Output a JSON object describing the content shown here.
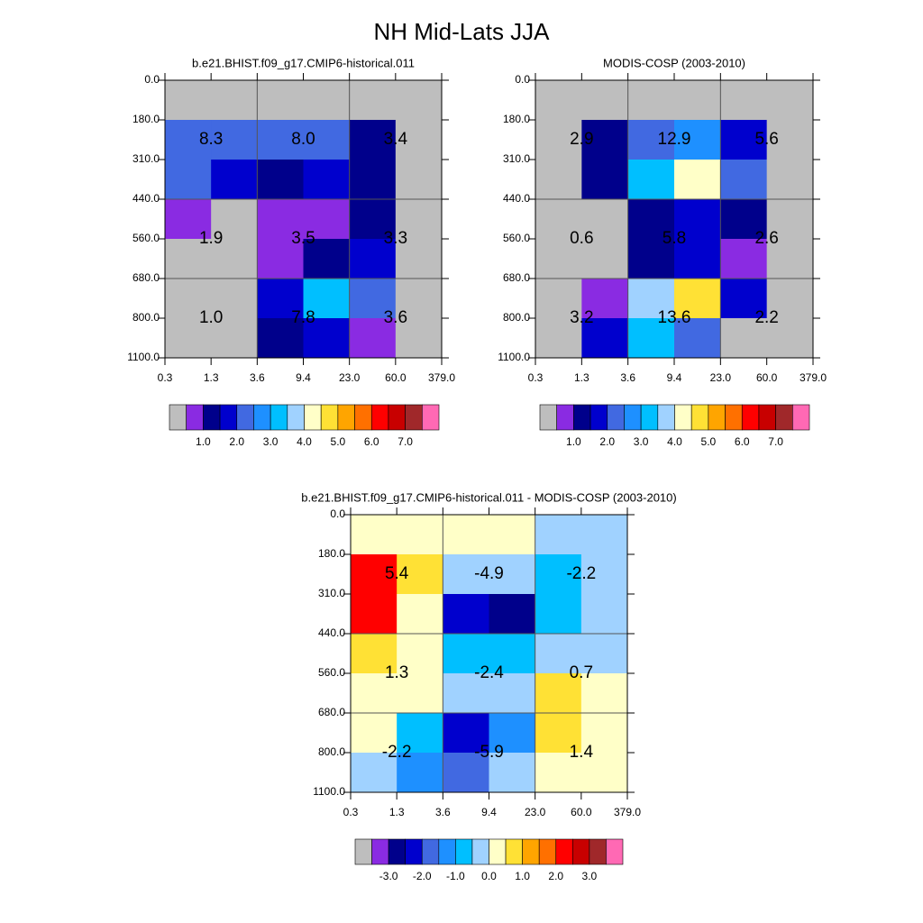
{
  "title": "NH Mid-Lats JJA",
  "chart_data": [
    {
      "type": "heatmap",
      "title": "b.e21.BHIST.f09_g17.CMIP6-historical.011",
      "xticks": [
        {
          "value": 0.3,
          "label": "0.3"
        },
        {
          "value": 1.3,
          "label": "1.3"
        },
        {
          "value": 3.6,
          "label": "3.6"
        },
        {
          "value": 9.4,
          "label": "9.4"
        },
        {
          "value": 23,
          "label": "23.0"
        },
        {
          "value": 60,
          "label": "60.0"
        },
        {
          "value": 379,
          "label": "379.0"
        }
      ],
      "yticks": [
        {
          "value": 0,
          "label": "0.0"
        },
        {
          "value": 180,
          "label": "180.0"
        },
        {
          "value": 310,
          "label": "310.0"
        },
        {
          "value": 440,
          "label": "440.0"
        },
        {
          "value": 560,
          "label": "560.0"
        },
        {
          "value": 680,
          "label": "680.0"
        },
        {
          "value": 800,
          "label": "800.0"
        },
        {
          "value": 1100,
          "label": "1100.0"
        }
      ],
      "cells": [
        [
          0.25,
          0.25,
          0.25,
          0.25,
          0.25,
          0.25
        ],
        [
          2.25,
          2.25,
          2.25,
          2.25,
          1.25,
          0.25
        ],
        [
          2.25,
          1.75,
          1.25,
          1.75,
          1.25,
          0.25
        ],
        [
          0.75,
          0.25,
          0.75,
          0.75,
          1.25,
          0.25
        ],
        [
          0.25,
          0.25,
          0.75,
          1.25,
          1.75,
          0.25
        ],
        [
          0.25,
          0.25,
          1.75,
          3.25,
          2.25,
          0.25
        ],
        [
          0.25,
          0.25,
          1.25,
          1.75,
          0.75,
          0.25
        ]
      ],
      "block_values": [
        [
          8.3,
          8,
          3.4
        ],
        [
          1.9,
          3.5,
          3.3
        ],
        [
          1,
          7.8,
          3.6
        ]
      ],
      "block_labels": [
        [
          "8.3",
          "8.0",
          "3.4"
        ],
        [
          "1.9",
          "3.5",
          "3.3"
        ],
        [
          "1.0",
          "7.8",
          "3.6"
        ]
      ],
      "grid": true,
      "colorbar": {
        "lim": [
          0,
          8
        ],
        "colors": [
          "#bebebe",
          "#8a2be2",
          "#00008b",
          "#0000cd",
          "#4169e1",
          "#1e90ff",
          "#00bfff",
          "#a0d2ff",
          "#ffffc8",
          "#ffe135",
          "#ffa500",
          "#ff7000",
          "#ff0000",
          "#c80000",
          "#a0282a",
          "#ff69b4"
        ],
        "ticks": [
          {
            "value": 1,
            "label": "1.0"
          },
          {
            "value": 2,
            "label": "2.0"
          },
          {
            "value": 3,
            "label": "3.0"
          },
          {
            "value": 4,
            "label": "4.0"
          },
          {
            "value": 5,
            "label": "5.0"
          },
          {
            "value": 6,
            "label": "6.0"
          },
          {
            "value": 7,
            "label": "7.0"
          }
        ]
      }
    },
    {
      "type": "heatmap",
      "title": "MODIS-COSP (2003-2010)",
      "xticks": [
        {
          "value": 0.3,
          "label": "0.3"
        },
        {
          "value": 1.3,
          "label": "1.3"
        },
        {
          "value": 3.6,
          "label": "3.6"
        },
        {
          "value": 9.4,
          "label": "9.4"
        },
        {
          "value": 23,
          "label": "23.0"
        },
        {
          "value": 60,
          "label": "60.0"
        },
        {
          "value": 379,
          "label": "379.0"
        }
      ],
      "yticks": [
        {
          "value": 0,
          "label": "0.0"
        },
        {
          "value": 180,
          "label": "180.0"
        },
        {
          "value": 310,
          "label": "310.0"
        },
        {
          "value": 440,
          "label": "440.0"
        },
        {
          "value": 560,
          "label": "560.0"
        },
        {
          "value": 680,
          "label": "680.0"
        },
        {
          "value": 800,
          "label": "800.0"
        },
        {
          "value": 1100,
          "label": "1100.0"
        }
      ],
      "cells": [
        [
          0.25,
          0.25,
          0.25,
          0.25,
          0.25,
          0.25
        ],
        [
          0.25,
          1.25,
          2.25,
          2.75,
          1.75,
          0.25
        ],
        [
          0.25,
          1.25,
          3.25,
          4.25,
          2.25,
          0.25
        ],
        [
          0.25,
          0.25,
          1.25,
          1.75,
          1.25,
          0.25
        ],
        [
          0.25,
          0.25,
          1.25,
          1.75,
          0.75,
          0.25
        ],
        [
          0.25,
          0.75,
          3.75,
          4.75,
          1.75,
          0.25
        ],
        [
          0.25,
          1.75,
          3.25,
          2.25,
          0.25,
          0.25
        ]
      ],
      "block_values": [
        [
          2.9,
          12.9,
          5.6
        ],
        [
          0.6,
          5.8,
          2.6
        ],
        [
          3.2,
          13.6,
          2.2
        ]
      ],
      "block_labels": [
        [
          "2.9",
          "12.9",
          "5.6"
        ],
        [
          "0.6",
          "5.8",
          "2.6"
        ],
        [
          "3.2",
          "13.6",
          "2.2"
        ]
      ],
      "grid": true,
      "colorbar": {
        "lim": [
          0,
          8
        ],
        "colors": [
          "#bebebe",
          "#8a2be2",
          "#00008b",
          "#0000cd",
          "#4169e1",
          "#1e90ff",
          "#00bfff",
          "#a0d2ff",
          "#ffffc8",
          "#ffe135",
          "#ffa500",
          "#ff7000",
          "#ff0000",
          "#c80000",
          "#a0282a",
          "#ff69b4"
        ],
        "ticks": [
          {
            "value": 1,
            "label": "1.0"
          },
          {
            "value": 2,
            "label": "2.0"
          },
          {
            "value": 3,
            "label": "3.0"
          },
          {
            "value": 4,
            "label": "4.0"
          },
          {
            "value": 5,
            "label": "5.0"
          },
          {
            "value": 6,
            "label": "6.0"
          },
          {
            "value": 7,
            "label": "7.0"
          }
        ]
      }
    },
    {
      "type": "heatmap",
      "title": "b.e21.BHIST.f09_g17.CMIP6-historical.011 - MODIS-COSP (2003-2010)",
      "xticks": [
        {
          "value": 0.3,
          "label": "0.3"
        },
        {
          "value": 1.3,
          "label": "1.3"
        },
        {
          "value": 3.6,
          "label": "3.6"
        },
        {
          "value": 9.4,
          "label": "9.4"
        },
        {
          "value": 23,
          "label": "23.0"
        },
        {
          "value": 60,
          "label": "60.0"
        },
        {
          "value": 379,
          "label": "379.0"
        }
      ],
      "yticks": [
        {
          "value": 0,
          "label": "0.0"
        },
        {
          "value": 180,
          "label": "180.0"
        },
        {
          "value": 310,
          "label": "310.0"
        },
        {
          "value": 440,
          "label": "440.0"
        },
        {
          "value": 560,
          "label": "560.0"
        },
        {
          "value": 680,
          "label": "680.0"
        },
        {
          "value": 800,
          "label": "800.0"
        },
        {
          "value": 1100,
          "label": "1100.0"
        }
      ],
      "cells": [
        [
          0.25,
          0.25,
          0.25,
          0.25,
          -0.25,
          -0.25
        ],
        [
          2.25,
          0.75,
          -0.25,
          -0.25,
          -0.75,
          -0.25
        ],
        [
          2.25,
          0.25,
          -2.25,
          -2.75,
          -0.75,
          -0.25
        ],
        [
          0.75,
          0.25,
          -0.75,
          -0.75,
          -0.25,
          -0.25
        ],
        [
          0.25,
          0.25,
          -0.25,
          -0.25,
          0.75,
          0.25
        ],
        [
          0.25,
          -0.75,
          -2.25,
          -1.25,
          0.75,
          0.25
        ],
        [
          -0.25,
          -1.25,
          -1.75,
          -0.25,
          0.25,
          0.25
        ]
      ],
      "block_values": [
        [
          5.4,
          -4.9,
          -2.2
        ],
        [
          1.3,
          -2.4,
          0.7
        ],
        [
          -2.2,
          -5.9,
          1.4
        ]
      ],
      "block_labels": [
        [
          "5.4",
          "-4.9",
          "-2.2"
        ],
        [
          "1.3",
          "-2.4",
          "0.7"
        ],
        [
          "-2.2",
          "-5.9",
          "1.4"
        ]
      ],
      "grid": true,
      "colorbar": {
        "lim": [
          -4,
          4
        ],
        "colors": [
          "#bebebe",
          "#8a2be2",
          "#00008b",
          "#0000cd",
          "#4169e1",
          "#1e90ff",
          "#00bfff",
          "#a0d2ff",
          "#ffffc8",
          "#ffe135",
          "#ffa500",
          "#ff7000",
          "#ff0000",
          "#c80000",
          "#a0282a",
          "#ff69b4"
        ],
        "ticks": [
          {
            "value": -3,
            "label": "-3.0"
          },
          {
            "value": -2,
            "label": "-2.0"
          },
          {
            "value": -1,
            "label": "-1.0"
          },
          {
            "value": 0,
            "label": "0.0"
          },
          {
            "value": 1,
            "label": "1.0"
          },
          {
            "value": 2,
            "label": "2.0"
          },
          {
            "value": 3,
            "label": "3.0"
          }
        ]
      }
    }
  ]
}
